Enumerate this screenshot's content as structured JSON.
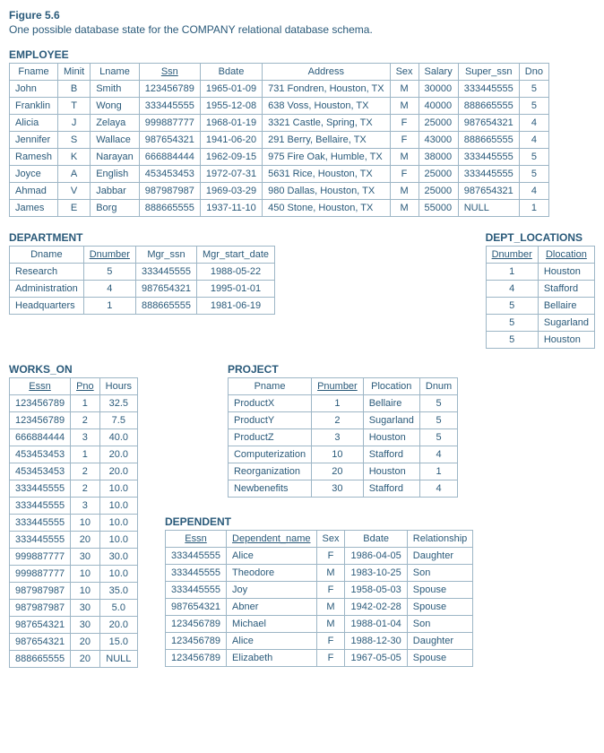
{
  "figure": {
    "label": "Figure 5.6",
    "caption": "One possible database state for the COMPANY relational database schema."
  },
  "employee": {
    "title": "EMPLOYEE",
    "columns": [
      "Fname",
      "Minit",
      "Lname",
      "Ssn",
      "Bdate",
      "Address",
      "Sex",
      "Salary",
      "Super_ssn",
      "Dno"
    ],
    "underline": [
      false,
      false,
      false,
      true,
      false,
      false,
      false,
      false,
      false,
      false
    ],
    "rows": [
      [
        "John",
        "B",
        "Smith",
        "123456789",
        "1965-01-09",
        "731 Fondren, Houston, TX",
        "M",
        "30000",
        "333445555",
        "5"
      ],
      [
        "Franklin",
        "T",
        "Wong",
        "333445555",
        "1955-12-08",
        "638 Voss, Houston, TX",
        "M",
        "40000",
        "888665555",
        "5"
      ],
      [
        "Alicia",
        "J",
        "Zelaya",
        "999887777",
        "1968-01-19",
        "3321 Castle, Spring, TX",
        "F",
        "25000",
        "987654321",
        "4"
      ],
      [
        "Jennifer",
        "S",
        "Wallace",
        "987654321",
        "1941-06-20",
        "291 Berry, Bellaire, TX",
        "F",
        "43000",
        "888665555",
        "4"
      ],
      [
        "Ramesh",
        "K",
        "Narayan",
        "666884444",
        "1962-09-15",
        "975 Fire Oak, Humble, TX",
        "M",
        "38000",
        "333445555",
        "5"
      ],
      [
        "Joyce",
        "A",
        "English",
        "453453453",
        "1972-07-31",
        "5631 Rice, Houston, TX",
        "F",
        "25000",
        "333445555",
        "5"
      ],
      [
        "Ahmad",
        "V",
        "Jabbar",
        "987987987",
        "1969-03-29",
        "980 Dallas, Houston, TX",
        "M",
        "25000",
        "987654321",
        "4"
      ],
      [
        "James",
        "E",
        "Borg",
        "888665555",
        "1937-11-10",
        "450 Stone, Houston, TX",
        "M",
        "55000",
        "NULL",
        "1"
      ]
    ],
    "align": [
      "l",
      "c",
      "l",
      "c",
      "c",
      "l",
      "c",
      "l",
      "l",
      "c"
    ]
  },
  "department": {
    "title": "DEPARTMENT",
    "columns": [
      "Dname",
      "Dnumber",
      "Mgr_ssn",
      "Mgr_start_date"
    ],
    "underline": [
      false,
      true,
      false,
      false
    ],
    "rows": [
      [
        "Research",
        "5",
        "333445555",
        "1988-05-22"
      ],
      [
        "Administration",
        "4",
        "987654321",
        "1995-01-01"
      ],
      [
        "Headquarters",
        "1",
        "888665555",
        "1981-06-19"
      ]
    ],
    "align": [
      "l",
      "c",
      "c",
      "c"
    ]
  },
  "dept_locations": {
    "title": "DEPT_LOCATIONS",
    "columns": [
      "Dnumber",
      "Dlocation"
    ],
    "underline": [
      true,
      true
    ],
    "rows": [
      [
        "1",
        "Houston"
      ],
      [
        "4",
        "Stafford"
      ],
      [
        "5",
        "Bellaire"
      ],
      [
        "5",
        "Sugarland"
      ],
      [
        "5",
        "Houston"
      ]
    ],
    "align": [
      "c",
      "l"
    ]
  },
  "works_on": {
    "title": "WORKS_ON",
    "columns": [
      "Essn",
      "Pno",
      "Hours"
    ],
    "underline": [
      true,
      true,
      false
    ],
    "rows": [
      [
        "123456789",
        "1",
        "32.5"
      ],
      [
        "123456789",
        "2",
        "7.5"
      ],
      [
        "666884444",
        "3",
        "40.0"
      ],
      [
        "453453453",
        "1",
        "20.0"
      ],
      [
        "453453453",
        "2",
        "20.0"
      ],
      [
        "333445555",
        "2",
        "10.0"
      ],
      [
        "333445555",
        "3",
        "10.0"
      ],
      [
        "333445555",
        "10",
        "10.0"
      ],
      [
        "333445555",
        "20",
        "10.0"
      ],
      [
        "999887777",
        "30",
        "30.0"
      ],
      [
        "999887777",
        "10",
        "10.0"
      ],
      [
        "987987987",
        "10",
        "35.0"
      ],
      [
        "987987987",
        "30",
        "5.0"
      ],
      [
        "987654321",
        "30",
        "20.0"
      ],
      [
        "987654321",
        "20",
        "15.0"
      ],
      [
        "888665555",
        "20",
        "NULL"
      ]
    ],
    "align": [
      "l",
      "c",
      "c"
    ]
  },
  "project": {
    "title": "PROJECT",
    "columns": [
      "Pname",
      "Pnumber",
      "Plocation",
      "Dnum"
    ],
    "underline": [
      false,
      true,
      false,
      false
    ],
    "rows": [
      [
        "ProductX",
        "1",
        "Bellaire",
        "5"
      ],
      [
        "ProductY",
        "2",
        "Sugarland",
        "5"
      ],
      [
        "ProductZ",
        "3",
        "Houston",
        "5"
      ],
      [
        "Computerization",
        "10",
        "Stafford",
        "4"
      ],
      [
        "Reorganization",
        "20",
        "Houston",
        "1"
      ],
      [
        "Newbenefits",
        "30",
        "Stafford",
        "4"
      ]
    ],
    "align": [
      "l",
      "c",
      "l",
      "c"
    ]
  },
  "dependent": {
    "title": "DEPENDENT",
    "columns": [
      "Essn",
      "Dependent_name",
      "Sex",
      "Bdate",
      "Relationship"
    ],
    "underline": [
      true,
      true,
      false,
      false,
      false
    ],
    "rows": [
      [
        "333445555",
        "Alice",
        "F",
        "1986-04-05",
        "Daughter"
      ],
      [
        "333445555",
        "Theodore",
        "M",
        "1983-10-25",
        "Son"
      ],
      [
        "333445555",
        "Joy",
        "F",
        "1958-05-03",
        "Spouse"
      ],
      [
        "987654321",
        "Abner",
        "M",
        "1942-02-28",
        "Spouse"
      ],
      [
        "123456789",
        "Michael",
        "M",
        "1988-01-04",
        "Son"
      ],
      [
        "123456789",
        "Alice",
        "F",
        "1988-12-30",
        "Daughter"
      ],
      [
        "123456789",
        "Elizabeth",
        "F",
        "1967-05-05",
        "Spouse"
      ]
    ],
    "align": [
      "l",
      "l",
      "c",
      "l",
      "l"
    ]
  }
}
